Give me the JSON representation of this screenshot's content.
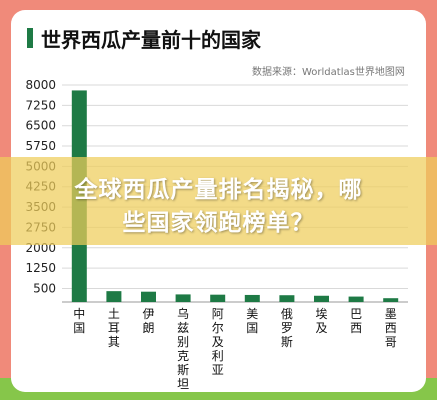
{
  "page": {
    "title": "世界西瓜产量前十的国家",
    "source": "数据来源：Worldatlas世界地图网",
    "overlay_line1": "全球西瓜产量排名揭秘，哪",
    "overlay_line2": "些国家领跑榜单？",
    "colors": {
      "bar": "#1e7a45",
      "background": "#f08a7a",
      "strip": "#86c64a"
    }
  },
  "chart_data": {
    "type": "bar",
    "title": "世界西瓜产量前十的国家",
    "categories": [
      "中国",
      "土耳其",
      "伊朗",
      "乌兹别克斯坦",
      "阿尔及利亚",
      "美国",
      "俄罗斯",
      "埃及",
      "巴西",
      "墨西哥"
    ],
    "values": [
      7800,
      400,
      380,
      280,
      270,
      260,
      250,
      230,
      200,
      140
    ],
    "yticks": [
      500,
      1250,
      2000,
      2750,
      3500,
      4250,
      5000,
      5750,
      6500,
      7250,
      8000
    ],
    "ylim": [
      0,
      8000
    ],
    "grid": true,
    "xlabel": "",
    "ylabel": ""
  }
}
